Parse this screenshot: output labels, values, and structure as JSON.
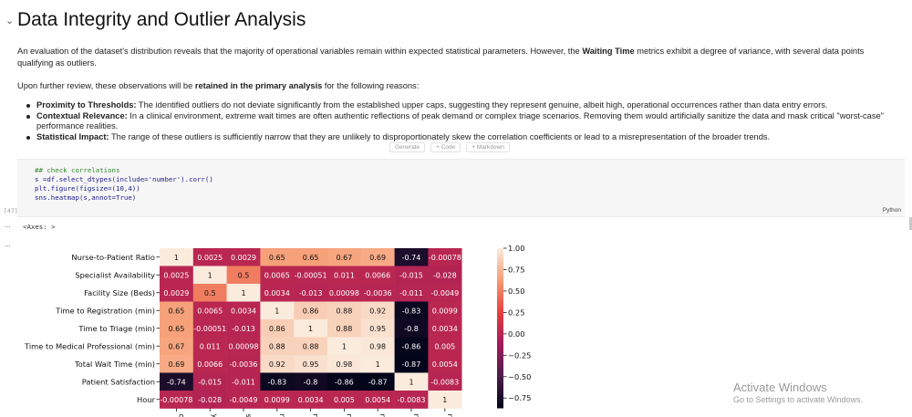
{
  "section": {
    "title": "Data Integrity and Outlier Analysis",
    "intro_pre": "An evaluation of the dataset's distribution reveals that the majority of operational variables remain within expected statistical parameters. However, the ",
    "intro_bold": "Waiting Time",
    "intro_post": " metrics exhibit a degree of variance, with several data points qualifying as outliers.",
    "review_pre": "Upon further review, these observations will be ",
    "review_bold": "retained in the primary analysis",
    "review_post": " for the following reasons:",
    "bullets": [
      {
        "head": "Proximity to Thresholds:",
        "text": " The identified outliers do not deviate significantly from the established upper caps, suggesting they represent genuine, albeit high, operational occurrences rather than data entry errors."
      },
      {
        "head": "Contextual Relevance:",
        "text": " In a clinical environment, extreme wait times are often authentic reflections of peak demand or complex triage scenarios. Removing them would artificially sanitize the data and mask critical \"worst-case\" performance realities."
      },
      {
        "head": "Statistical Impact:",
        "text": " The range of these outliers is sufficiently narrow that they are unlikely to disproportionately skew the correlation coefficients or lead to a misrepresentation of the broader trends."
      }
    ]
  },
  "cell_toolbar": {
    "generate": "Generate",
    "code": "+ Code",
    "markdown": "+ Markdown"
  },
  "code_cell": {
    "lines": [
      "## check correlations",
      "s =df.select_dtypes(include='number').corr()",
      "plt.figure(figsize=(10,4))",
      "sns.heatmap(s,annot=True)"
    ],
    "exec_count": "[47]",
    "language": "Python"
  },
  "output": {
    "ellipsis": "...",
    "text": "<Axes: >"
  },
  "chart_data": {
    "type": "heatmap",
    "labels": [
      "Nurse-to-Patient Ratio",
      "Specialist Availability",
      "Facility Size (Beds)",
      "Time to Registration (min)",
      "Time to Triage (min)",
      "Time to Medical Professional (min)",
      "Total Wait Time (min)",
      "Patient Satisfaction",
      "Hour"
    ],
    "x_tick_fragments": [
      "o",
      "y",
      "s)",
      "n)",
      "n)",
      "n)",
      "n)",
      "n",
      "r"
    ],
    "values": [
      [
        1,
        0.0025,
        0.0029,
        0.65,
        0.65,
        0.67,
        0.69,
        -0.74,
        -0.00078
      ],
      [
        0.0025,
        1,
        0.5,
        0.0065,
        -0.00051,
        0.011,
        0.0066,
        -0.015,
        -0.028
      ],
      [
        0.0029,
        0.5,
        1,
        0.0034,
        -0.013,
        0.00098,
        -0.0036,
        -0.011,
        -0.0049
      ],
      [
        0.65,
        0.0065,
        0.0034,
        1,
        0.86,
        0.88,
        0.92,
        -0.83,
        0.0099
      ],
      [
        0.65,
        -0.00051,
        -0.013,
        0.86,
        1,
        0.88,
        0.95,
        -0.8,
        0.0034
      ],
      [
        0.67,
        0.011,
        0.00098,
        0.88,
        0.88,
        1,
        0.98,
        -0.86,
        0.005
      ],
      [
        0.69,
        0.0066,
        -0.0036,
        0.92,
        0.95,
        0.98,
        1,
        -0.87,
        0.0054
      ],
      [
        -0.74,
        -0.015,
        -0.011,
        -0.83,
        -0.8,
        -0.86,
        -0.87,
        1,
        -0.0083
      ],
      [
        -0.00078,
        -0.028,
        -0.0049,
        0.0099,
        0.0034,
        0.005,
        0.0054,
        -0.0083,
        1
      ]
    ],
    "annotations": [
      [
        "1",
        "0.0025",
        "0.0029",
        "0.65",
        "0.65",
        "0.67",
        "0.69",
        "-0.74",
        "-0.00078"
      ],
      [
        "0.0025",
        "1",
        "0.5",
        "0.0065",
        "-0.00051",
        "0.011",
        "0.0066",
        "-0.015",
        "-0.028"
      ],
      [
        "0.0029",
        "0.5",
        "1",
        "0.0034",
        "-0.013",
        "0.00098",
        "-0.0036",
        "-0.011",
        "-0.0049"
      ],
      [
        "0.65",
        "0.0065",
        "0.0034",
        "1",
        "0.86",
        "0.88",
        "0.92",
        "-0.83",
        "0.0099"
      ],
      [
        "0.65",
        "-0.00051",
        "-0.013",
        "0.86",
        "1",
        "0.88",
        "0.95",
        "-0.8",
        "0.0034"
      ],
      [
        "0.67",
        "0.011",
        "0.00098",
        "0.88",
        "0.88",
        "1",
        "0.98",
        "-0.86",
        "0.005"
      ],
      [
        "0.69",
        "0.0066",
        "-0.0036",
        "0.92",
        "0.95",
        "0.98",
        "1",
        "-0.87",
        "0.0054"
      ],
      [
        "-0.74",
        "-0.015",
        "-0.011",
        "-0.83",
        "-0.8",
        "-0.86",
        "-0.87",
        "1",
        "-0.0083"
      ],
      [
        "-0.00078",
        "-0.028",
        "-0.0049",
        "0.0099",
        "0.0034",
        "0.005",
        "0.0054",
        "-0.0083",
        "1"
      ]
    ],
    "colorbar": {
      "vmin": -0.87,
      "vmax": 1.0,
      "ticks": [
        1.0,
        0.75,
        0.5,
        0.25,
        0.0,
        -0.25,
        -0.5,
        -0.75
      ],
      "tick_labels": [
        "1.00",
        "0.75",
        "0.50",
        "0.25",
        "0.00",
        "−0.25",
        "−0.50",
        "−0.75"
      ]
    },
    "colormap": "rocket",
    "colormap_stops": [
      "#03051a",
      "#4c1d4b",
      "#a11a5b",
      "#e83f3f",
      "#f69c73",
      "#faebdd"
    ]
  },
  "watermark": {
    "title": "Activate Windows",
    "subtitle": "Go to Settings to activate Windows."
  }
}
